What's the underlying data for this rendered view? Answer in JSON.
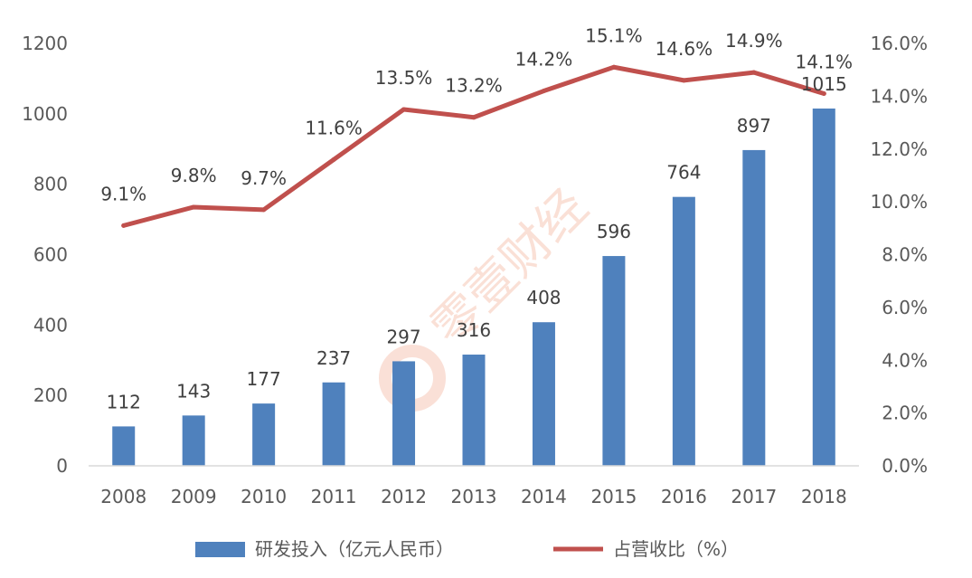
{
  "chart_data": {
    "type": "bar",
    "categories": [
      "2008",
      "2009",
      "2010",
      "2011",
      "2012",
      "2013",
      "2014",
      "2015",
      "2016",
      "2017",
      "2018"
    ],
    "series": [
      {
        "name": "研发投入（亿元人民币）",
        "type": "bar",
        "axis": "left",
        "values": [
          112,
          143,
          177,
          237,
          297,
          316,
          408,
          596,
          764,
          897,
          1015
        ],
        "labels": [
          "112",
          "143",
          "177",
          "237",
          "297",
          "316",
          "408",
          "596",
          "764",
          "897",
          "1015"
        ],
        "color": "#4f81bd"
      },
      {
        "name": "占营收比（%）",
        "type": "line",
        "axis": "right",
        "values": [
          9.1,
          9.8,
          9.7,
          11.6,
          13.5,
          13.2,
          14.2,
          15.1,
          14.6,
          14.9,
          14.1
        ],
        "labels": [
          "9.1%",
          "9.8%",
          "9.7%",
          "11.6%",
          "13.5%",
          "13.2%",
          "14.2%",
          "15.1%",
          "14.6%",
          "14.9%",
          "14.1%"
        ],
        "color": "#c0504d"
      }
    ],
    "y_left": {
      "ylim": [
        0,
        1200
      ],
      "ticks": [
        "0",
        "200",
        "400",
        "600",
        "800",
        "1000",
        "1200"
      ]
    },
    "y_right": {
      "ylim": [
        0,
        16
      ],
      "ticks": [
        "0.0%",
        "2.0%",
        "4.0%",
        "6.0%",
        "8.0%",
        "10.0%",
        "12.0%",
        "14.0%",
        "16.0%"
      ]
    },
    "grid": false,
    "legend_position": "bottom",
    "title": "",
    "xlabel": "",
    "ylabel": ""
  },
  "watermark": {
    "text": "零壹财经"
  }
}
